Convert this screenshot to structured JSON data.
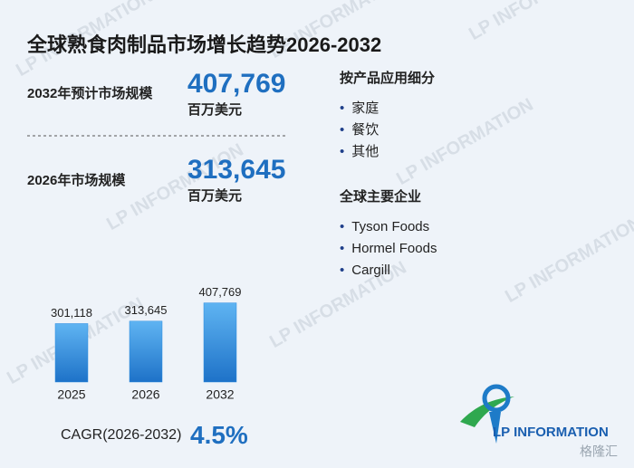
{
  "title": "全球熟食肉制品市场增长趋势2026-2032",
  "stats": [
    {
      "label": "2032年预计市场规模",
      "value": "407,769",
      "unit": "百万美元"
    },
    {
      "label": "2026年市场规模",
      "value": "313,645",
      "unit": "百万美元"
    }
  ],
  "segments": {
    "heading": "按产品应用细分",
    "items": [
      "家庭",
      "餐饮",
      "其他"
    ]
  },
  "companies": {
    "heading": "全球主要企业",
    "items": [
      "Tyson Foods",
      "Hormel Foods",
      "Cargill"
    ]
  },
  "cagr": {
    "label": "CAGR(2026-2032)",
    "value": "4.5%"
  },
  "logo": "LP INFORMATION",
  "source_mark": "格隆汇",
  "chart_data": {
    "type": "bar",
    "categories": [
      "2025",
      "2026",
      "2032"
    ],
    "values": [
      301118,
      313645,
      407769
    ],
    "value_labels": [
      "301,118",
      "313,645",
      "407,769"
    ],
    "color": "#2b8be0",
    "ylim": [
      0,
      420000
    ]
  }
}
